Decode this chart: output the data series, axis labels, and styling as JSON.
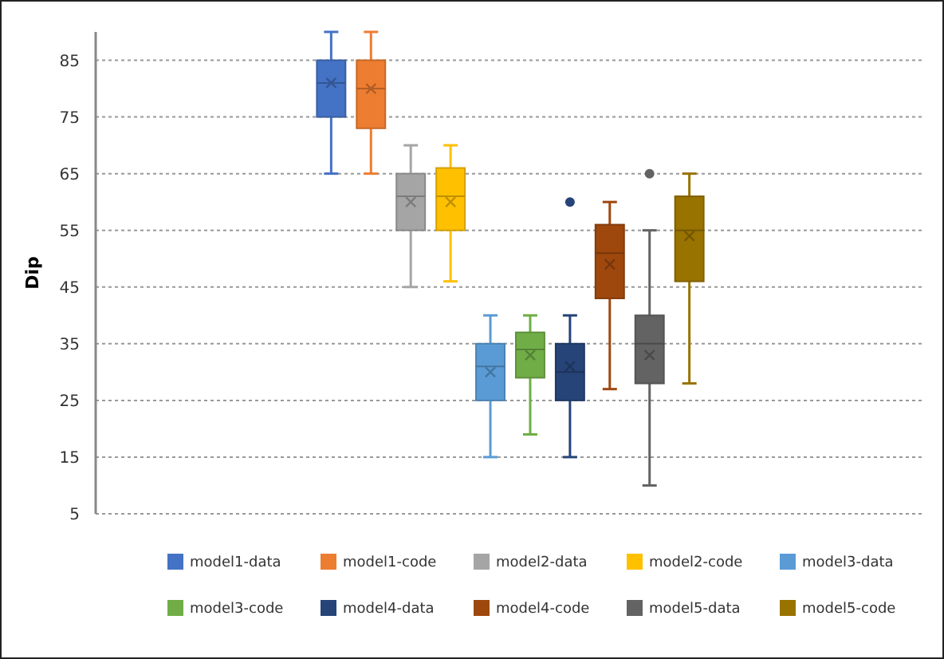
{
  "chart_data": {
    "type": "box",
    "ylabel": "Dip",
    "categories": [
      null
    ],
    "ylim": [
      5,
      90
    ],
    "yticks": [
      5,
      15,
      25,
      35,
      45,
      55,
      65,
      75,
      85
    ],
    "grid": "y",
    "legend": "bottom",
    "series": [
      {
        "name": "model1-data",
        "color": "#4472c4",
        "boxes": [
          {
            "low": 65,
            "q1": 75,
            "median": 81,
            "q3": 85,
            "high": 90,
            "mean": 81
          }
        ]
      },
      {
        "name": "model1-code",
        "color": "#ed7d31",
        "boxes": [
          {
            "low": 65,
            "q1": 73,
            "median": 80,
            "q3": 85,
            "high": 90,
            "mean": 80
          }
        ]
      },
      {
        "name": "model2-data",
        "color": "#a5a5a5",
        "boxes": [
          {
            "low": 45,
            "q1": 55,
            "median": 61,
            "q3": 65,
            "high": 70,
            "mean": 60
          }
        ]
      },
      {
        "name": "model2-code",
        "color": "#ffc000",
        "boxes": [
          {
            "low": 46,
            "q1": 55,
            "median": 61,
            "q3": 66,
            "high": 70,
            "mean": 60
          }
        ]
      },
      {
        "name": "model3-data",
        "color": "#5b9bd5",
        "boxes": [
          {
            "low": 15,
            "q1": 25,
            "median": 31,
            "q3": 35,
            "high": 40,
            "mean": 30
          }
        ]
      },
      {
        "name": "model3-code",
        "color": "#70ad47",
        "boxes": [
          {
            "low": 19,
            "q1": 29,
            "median": 34,
            "q3": 37,
            "high": 40,
            "mean": 33
          }
        ]
      },
      {
        "name": "model4-data",
        "color": "#264478",
        "boxes": [
          {
            "low": 15,
            "q1": 25,
            "median": 30,
            "q3": 35,
            "high": 40,
            "mean": 31,
            "outliers": [
              60
            ]
          }
        ]
      },
      {
        "name": "model4-code",
        "color": "#9e480e",
        "boxes": [
          {
            "low": 27,
            "q1": 43,
            "median": 51,
            "q3": 56,
            "high": 60,
            "mean": 49
          }
        ]
      },
      {
        "name": "model5-data",
        "color": "#636363",
        "boxes": [
          {
            "low": 10,
            "q1": 28,
            "median": 35,
            "q3": 40,
            "high": 55,
            "mean": 33,
            "outliers": [
              65
            ]
          }
        ]
      },
      {
        "name": "model5-code",
        "color": "#997300",
        "boxes": [
          {
            "low": 28,
            "q1": 46,
            "median": 55,
            "q3": 61,
            "high": 65,
            "mean": 54
          }
        ]
      }
    ]
  }
}
